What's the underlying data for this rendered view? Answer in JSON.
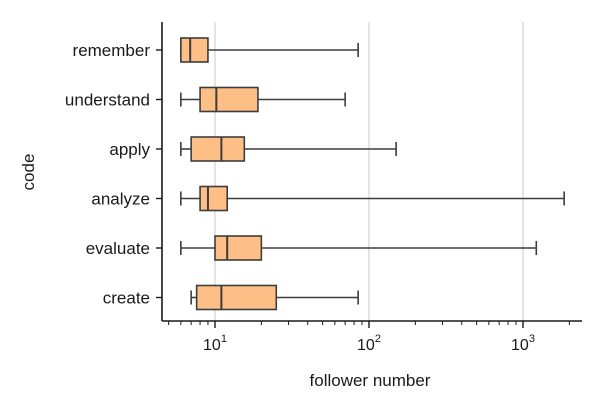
{
  "chart_data": {
    "type": "box",
    "orientation": "horizontal",
    "xlabel": "follower number",
    "ylabel": "code",
    "x_scale": "log",
    "xlim": [
      4.7,
      2400
    ],
    "x_ticks": [
      {
        "value": 10,
        "base": "10",
        "exp": "1"
      },
      {
        "value": 100,
        "base": "10",
        "exp": "2"
      },
      {
        "value": 1000,
        "base": "10",
        "exp": "3"
      }
    ],
    "grid": "vertical at major ticks",
    "box_color": "#fdbf86",
    "line_color": "#3d3d3d",
    "grid_color": "#c8c8c8",
    "categories": [
      "remember",
      "understand",
      "apply",
      "analyze",
      "evaluate",
      "create"
    ],
    "boxes": [
      {
        "category": "remember",
        "min": 6,
        "q1": 6,
        "median": 6.9,
        "q3": 9,
        "max": 85
      },
      {
        "category": "understand",
        "min": 6,
        "q1": 8,
        "median": 10.2,
        "q3": 19,
        "max": 70
      },
      {
        "category": "apply",
        "min": 6,
        "q1": 7,
        "median": 11,
        "q3": 15.5,
        "max": 150
      },
      {
        "category": "analyze",
        "min": 6,
        "q1": 8,
        "median": 9,
        "q3": 12,
        "max": 1850
      },
      {
        "category": "evaluate",
        "min": 6,
        "q1": 10,
        "median": 12,
        "q3": 20,
        "max": 1220
      },
      {
        "category": "create",
        "min": 7,
        "q1": 7.6,
        "median": 11,
        "q3": 25,
        "max": 85
      }
    ]
  }
}
